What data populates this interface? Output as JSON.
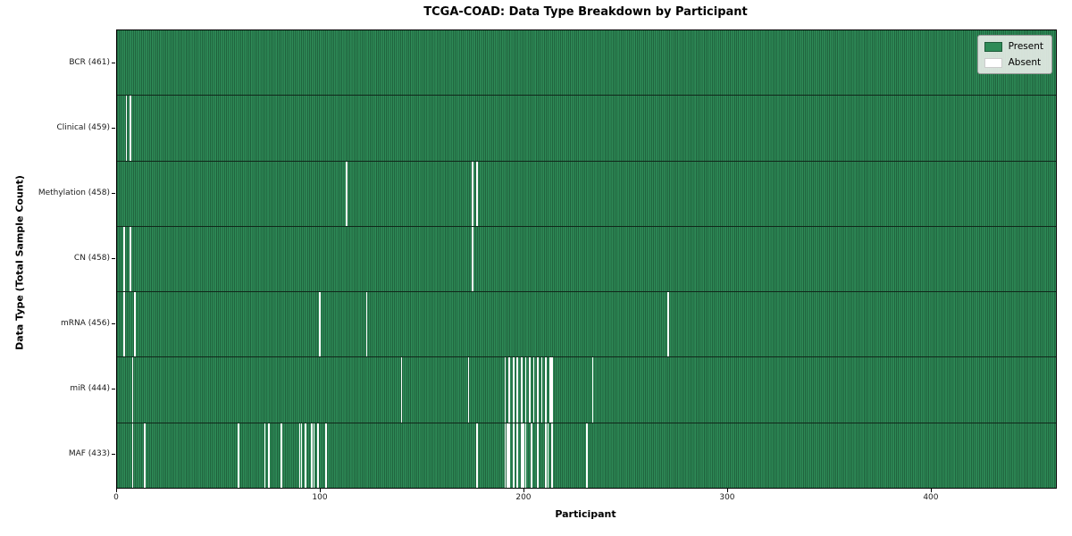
{
  "chart_data": {
    "type": "heatmap",
    "title": "TCGA-COAD: Data Type Breakdown by Participant",
    "xlabel": "Participant",
    "ylabel": "Data Type (Total Sample Count)",
    "n_participants": 461,
    "x_ticks": [
      0,
      100,
      200,
      300,
      400
    ],
    "legend_position": "upper right",
    "grid": false,
    "legend": [
      {
        "label": "Present",
        "color": "#2e8b57"
      },
      {
        "label": "Absent",
        "color": "#ffffff"
      }
    ],
    "rows": [
      {
        "label": "BCR (461)",
        "data_type": "BCR",
        "total": 461,
        "absent_participants": []
      },
      {
        "label": "Clinical (459)",
        "data_type": "Clinical",
        "total": 459,
        "absent_participants": [
          4,
          6
        ]
      },
      {
        "label": "Methylation (458)",
        "data_type": "Methylation",
        "total": 458,
        "absent_participants": [
          112,
          174,
          176
        ]
      },
      {
        "label": "CN (458)",
        "data_type": "CN",
        "total": 458,
        "absent_participants": [
          3,
          6,
          174
        ]
      },
      {
        "label": "mRNA (456)",
        "data_type": "mRNA",
        "total": 456,
        "absent_participants": [
          3,
          8,
          99,
          122,
          270
        ]
      },
      {
        "label": "miR (444)",
        "data_type": "miR",
        "total": 444,
        "absent_participants": [
          7,
          139,
          172,
          190,
          192,
          194,
          196,
          198,
          200,
          202,
          204,
          206,
          208,
          210,
          212,
          213,
          233
        ]
      },
      {
        "label": "MAF (433)",
        "data_type": "MAF",
        "total": 433,
        "absent_participants": [
          7,
          13,
          59,
          72,
          74,
          80,
          89,
          90,
          92,
          95,
          96,
          98,
          102,
          176,
          190,
          191,
          192,
          194,
          196,
          198,
          199,
          200,
          203,
          206,
          210,
          211,
          213,
          230
        ]
      }
    ]
  }
}
